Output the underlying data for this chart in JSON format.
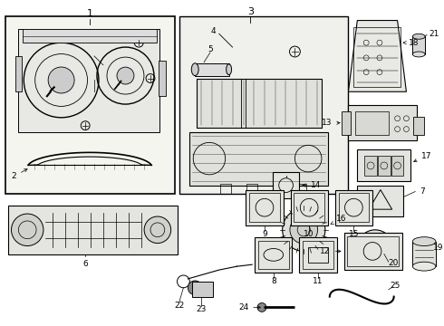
{
  "background_color": "#ffffff",
  "line_color": "#000000",
  "text_color": "#000000",
  "fig_width": 4.9,
  "fig_height": 3.6,
  "dpi": 100,
  "fs": 6.5,
  "fs_big": 8.0
}
